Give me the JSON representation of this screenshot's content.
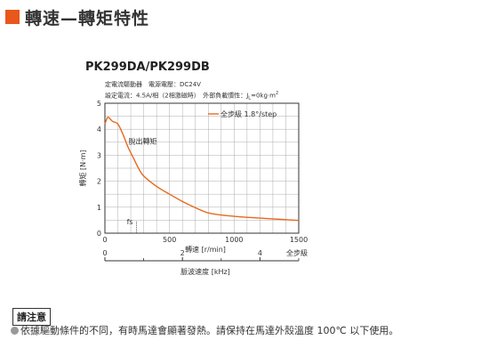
{
  "header": {
    "title": "轉速—轉矩特性",
    "accent_color": "#e8581c"
  },
  "chart_meta": {
    "model": "PK299DA/PK299DB",
    "conditions_line1": "定電流驅動器　電源電壓：DC24V",
    "conditions_line2": "設定電流：4.5A/相（2相激磁時）　外部負載慣性：J",
    "conditions_line2_sub": "L",
    "conditions_line2_tail": "=0kg·m",
    "conditions_line2_sup": "2",
    "second_axis_label": "脈波速度 [kHz]",
    "second_axis_unit_right": "全步級",
    "line_color": "#e8681c"
  },
  "chart_data": {
    "type": "line",
    "title": "PK299DA/PK299DB",
    "xlabel": "轉速 [r/min]",
    "ylabel": "轉矩 [N·m]",
    "xlim": [
      0,
      1500
    ],
    "ylim": [
      0,
      5
    ],
    "xticks": [
      "0",
      "500",
      "1000",
      "1500"
    ],
    "yticks": [
      "0",
      "1",
      "2",
      "3",
      "4",
      "5"
    ],
    "grid": true,
    "legend": "全步級 1.8°/step",
    "legend_position": "top-right",
    "series": [
      {
        "name": "全步級 1.8°/step",
        "x": [
          0,
          20,
          40,
          60,
          100,
          140,
          180,
          220,
          260,
          300,
          400,
          500,
          600,
          700,
          800,
          900,
          1000,
          1100,
          1200,
          1300,
          1400,
          1500
        ],
        "y": [
          4.2,
          4.45,
          4.4,
          4.3,
          4.2,
          3.8,
          3.3,
          2.9,
          2.5,
          2.2,
          1.8,
          1.5,
          1.22,
          0.98,
          0.78,
          0.7,
          0.65,
          0.61,
          0.58,
          0.55,
          0.52,
          0.49
        ]
      }
    ],
    "annotations": [
      {
        "text": "脫出轉矩",
        "x": 210,
        "y": 3.45
      },
      {
        "text": "fs",
        "x": 190,
        "y": 0.2
      }
    ],
    "secondary_x": {
      "label": "脈波速度 [kHz]",
      "ticks": [
        "0",
        "2",
        "4"
      ],
      "tick_values": [
        0,
        2,
        4
      ],
      "max": 5,
      "unit_right": "全步級"
    }
  },
  "notes": {
    "badge": "請注意",
    "text": "依據驅動條件的不同，有時馬達會顯著發熱。請保持在馬達外殼溫度 100℃ 以下使用。"
  }
}
